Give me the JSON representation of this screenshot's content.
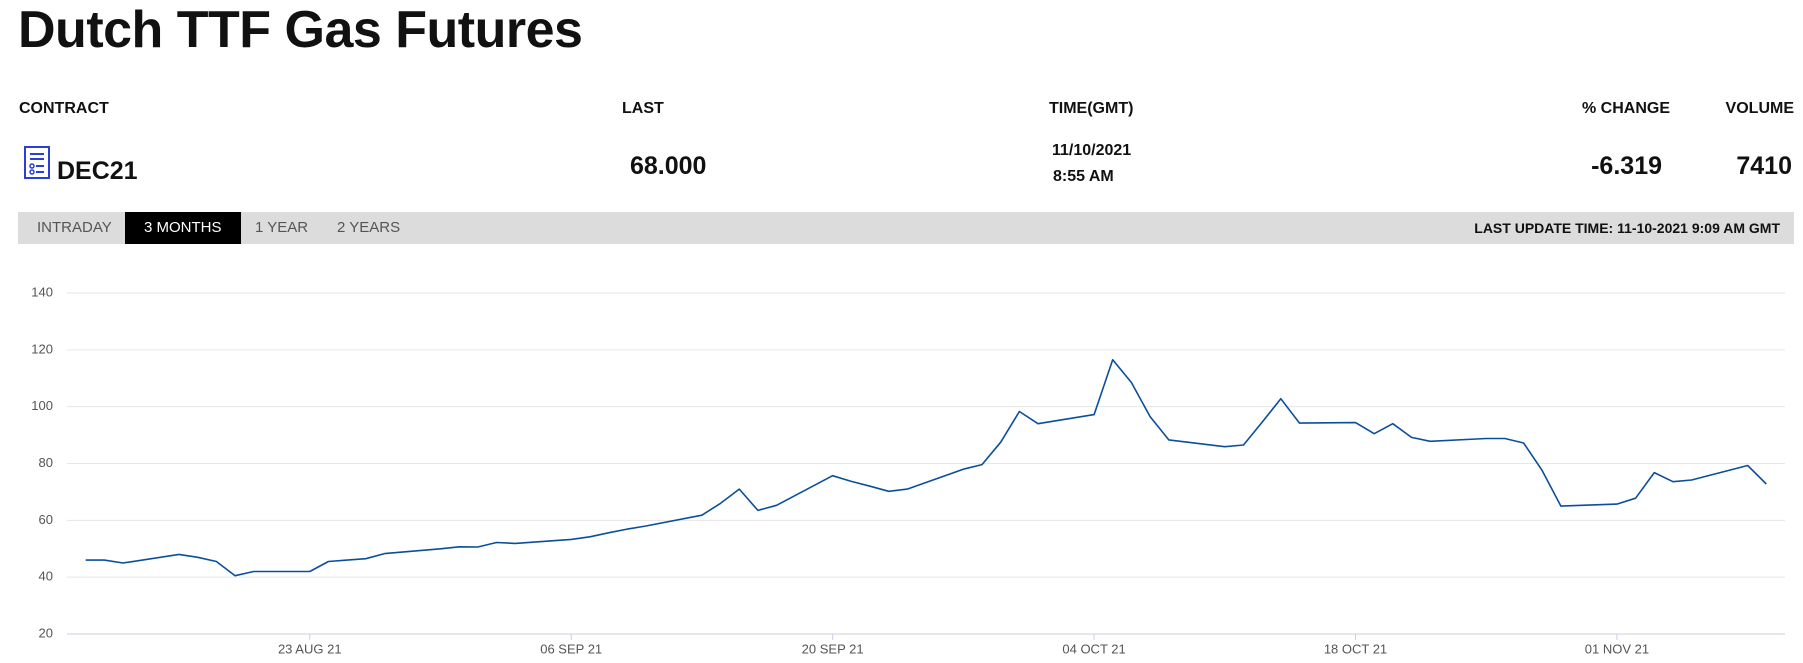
{
  "header": {
    "title": "Dutch TTF Gas Futures"
  },
  "table": {
    "columns": [
      "CONTRACT",
      "LAST",
      "TIME(GMT)",
      "% CHANGE",
      "VOLUME"
    ],
    "row": {
      "contract": "DEC21",
      "last": "68.000",
      "date": "11/10/2021",
      "time": "8:55 AM",
      "change": "-6.319",
      "volume": "7410"
    }
  },
  "tabs": [
    "INTRADAY",
    "3 MONTHS",
    "1 YEAR",
    "2 YEARS"
  ],
  "active_tab": 1,
  "last_update": "LAST UPDATE TIME: 11-10-2021 9:09 AM GMT",
  "chart_data": {
    "type": "line",
    "color": "#0b4f9c",
    "x": [
      "2021-08-11",
      "2021-08-12",
      "2021-08-13",
      "2021-08-16",
      "2021-08-17",
      "2021-08-18",
      "2021-08-19",
      "2021-08-20",
      "2021-08-23",
      "2021-08-24",
      "2021-08-25",
      "2021-08-26",
      "2021-08-27",
      "2021-08-30",
      "2021-08-31",
      "2021-09-01",
      "2021-09-02",
      "2021-09-03",
      "2021-09-06",
      "2021-09-07",
      "2021-09-08",
      "2021-09-09",
      "2021-09-10",
      "2021-09-13",
      "2021-09-14",
      "2021-09-15",
      "2021-09-16",
      "2021-09-17",
      "2021-09-20",
      "2021-09-21",
      "2021-09-22",
      "2021-09-23",
      "2021-09-24",
      "2021-09-27",
      "2021-09-28",
      "2021-09-29",
      "2021-09-30",
      "2021-10-01",
      "2021-10-04",
      "2021-10-05",
      "2021-10-06",
      "2021-10-07",
      "2021-10-08",
      "2021-10-11",
      "2021-10-12",
      "2021-10-13",
      "2021-10-14",
      "2021-10-15",
      "2021-10-18",
      "2021-10-19",
      "2021-10-20",
      "2021-10-21",
      "2021-10-22",
      "2021-10-25",
      "2021-10-26",
      "2021-10-27",
      "2021-10-28",
      "2021-10-29",
      "2021-11-01",
      "2021-11-02",
      "2021-11-03",
      "2021-11-04",
      "2021-11-05",
      "2021-11-08",
      "2021-11-09"
    ],
    "values": [
      46,
      46,
      45,
      48,
      47,
      45.5,
      40.5,
      42,
      42,
      45.5,
      46,
      46.5,
      48.3,
      50,
      50.7,
      50.6,
      52.2,
      51.9,
      53.3,
      54.2,
      55.6,
      56.9,
      58,
      61.8,
      66,
      71,
      63.5,
      65.3,
      75.7,
      73.7,
      72,
      70.2,
      71,
      78,
      79.6,
      87.5,
      98.3,
      94,
      97.2,
      116.5,
      108.5,
      96.5,
      88.3,
      85.9,
      86.5,
      94.5,
      102.8,
      94.2,
      94.4,
      90.5,
      94,
      89.2,
      87.8,
      88.8,
      88.8,
      87.2,
      77.5,
      65,
      65.7,
      67.8,
      76.8,
      73.6,
      74.2,
      79.3,
      72.8
    ],
    "xlim": [
      "2021-08-10",
      "2021-11-10"
    ],
    "xticks": [
      {
        "value": "2021-08-23",
        "label": "23 AUG 21"
      },
      {
        "value": "2021-09-06",
        "label": "06 SEP 21"
      },
      {
        "value": "2021-09-20",
        "label": "20 SEP 21"
      },
      {
        "value": "2021-10-04",
        "label": "04 OCT 21"
      },
      {
        "value": "2021-10-18",
        "label": "18 OCT 21"
      },
      {
        "value": "2021-11-01",
        "label": "01 NOV 21"
      }
    ],
    "ylim": [
      20,
      140
    ],
    "yticks": [
      20,
      40,
      60,
      80,
      100,
      120,
      140
    ],
    "grid": true
  }
}
